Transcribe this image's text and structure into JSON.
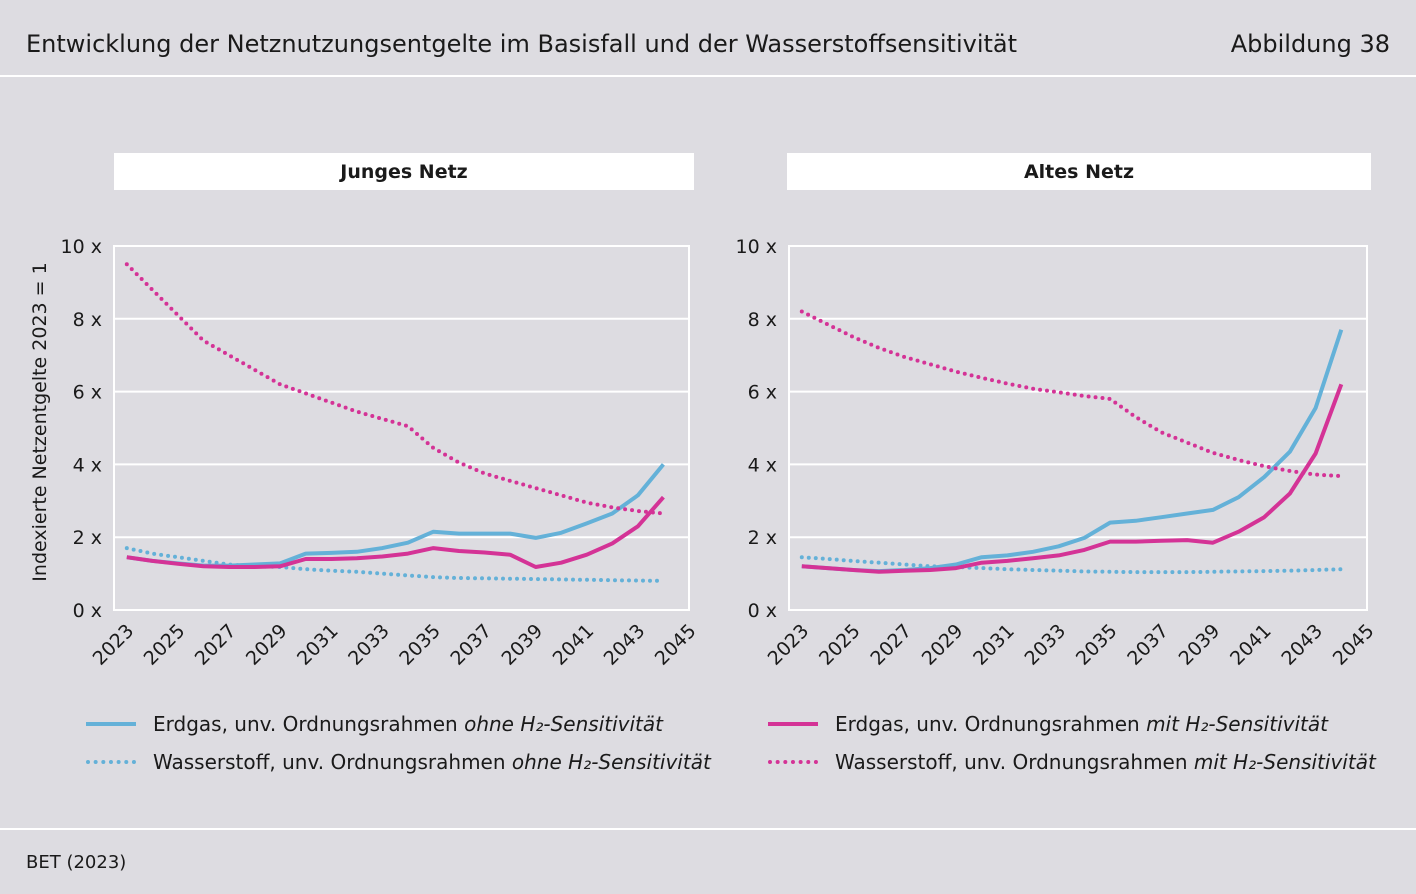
{
  "header": {
    "title": "Entwicklung der Netznutzungsentgelte im Basisfall und der Wasserstoffsensitivität",
    "figure_label": "Abbildung 38"
  },
  "footer": {
    "source": "BET (2023)"
  },
  "legend": [
    {
      "text": "Erdgas, unv. Ordnungsrahmen ",
      "em": "ohne H₂-Sensitivität"
    },
    {
      "text": "Wasserstoff, unv. Ordnungsrahmen ",
      "em": "ohne H₂-Sensitivität"
    },
    {
      "text": "Erdgas, unv. Ordnungsrahmen ",
      "em": "mit H₂-Sensitivität"
    },
    {
      "text": "Wasserstoff, unv. Ordnungsrahmen ",
      "em": "mit H₂-Sensitivität"
    }
  ],
  "colors": {
    "blue": "#64b1d8",
    "pink": "#d43396",
    "grid": "#ffffff",
    "background": "#dddce1"
  },
  "chart_data": [
    {
      "type": "line",
      "title": "Junges Netz",
      "ylabel": "Indexierte Netzentgelte 2023 = 1",
      "ylim": [
        0,
        10
      ],
      "yticks": [
        0,
        2,
        4,
        6,
        8,
        10
      ],
      "ytick_labels": [
        "0 x",
        "2 x",
        "4 x",
        "6 x",
        "8 x",
        "10 x"
      ],
      "xlim": [
        2022.5,
        2045
      ],
      "xtick_labels": [
        "2023",
        "2025",
        "2027",
        "2029",
        "2031",
        "2033",
        "2035",
        "2037",
        "2039",
        "2041",
        "2043",
        "2045"
      ],
      "x": [
        2023,
        2024,
        2025,
        2026,
        2027,
        2028,
        2029,
        2030,
        2031,
        2032,
        2033,
        2034,
        2035,
        2036,
        2037,
        2038,
        2039,
        2040,
        2041,
        2042,
        2043,
        2044
      ],
      "series": [
        {
          "name": "Erdgas ohne H₂",
          "style": "solid",
          "color": "#64b1d8",
          "values": [
            1.45,
            1.35,
            1.28,
            1.22,
            1.22,
            1.25,
            1.28,
            1.55,
            1.57,
            1.6,
            1.7,
            1.85,
            2.15,
            2.1,
            2.1,
            2.1,
            1.98,
            2.12,
            2.38,
            2.65,
            3.15,
            4.0
          ]
        },
        {
          "name": "Wasserstoff ohne H₂",
          "style": "dotted",
          "color": "#64b1d8",
          "values": [
            1.7,
            1.55,
            1.45,
            1.35,
            1.25,
            1.2,
            1.18,
            1.12,
            1.08,
            1.05,
            1.0,
            0.95,
            0.9,
            0.88,
            0.87,
            0.86,
            0.85,
            0.84,
            0.83,
            0.82,
            0.81,
            0.8
          ]
        },
        {
          "name": "Erdgas mit H₂",
          "style": "solid",
          "color": "#d43396",
          "values": [
            1.45,
            1.35,
            1.27,
            1.2,
            1.18,
            1.18,
            1.2,
            1.4,
            1.4,
            1.42,
            1.47,
            1.55,
            1.7,
            1.62,
            1.58,
            1.52,
            1.18,
            1.3,
            1.52,
            1.83,
            2.3,
            3.1
          ]
        },
        {
          "name": "Wasserstoff mit H₂",
          "style": "dotted",
          "color": "#d43396",
          "values": [
            9.5,
            8.8,
            8.1,
            7.4,
            7.0,
            6.6,
            6.2,
            5.95,
            5.7,
            5.45,
            5.25,
            5.05,
            4.45,
            4.05,
            3.75,
            3.55,
            3.35,
            3.15,
            2.95,
            2.82,
            2.72,
            2.65
          ]
        }
      ]
    },
    {
      "type": "line",
      "title": "Altes Netz",
      "ylim": [
        0,
        10
      ],
      "yticks": [
        0,
        2,
        4,
        6,
        8,
        10
      ],
      "ytick_labels": [
        "0 x",
        "2 x",
        "4 x",
        "6 x",
        "8 x",
        "10 x"
      ],
      "xlim": [
        2022.5,
        2045
      ],
      "xtick_labels": [
        "2023",
        "2025",
        "2027",
        "2029",
        "2031",
        "2033",
        "2035",
        "2037",
        "2039",
        "2041",
        "2043",
        "2045"
      ],
      "x": [
        2023,
        2024,
        2025,
        2026,
        2027,
        2028,
        2029,
        2030,
        2031,
        2032,
        2033,
        2034,
        2035,
        2036,
        2037,
        2038,
        2039,
        2040,
        2041,
        2042,
        2043,
        2044
      ],
      "series": [
        {
          "name": "Erdgas ohne H₂",
          "style": "solid",
          "color": "#64b1d8",
          "values": [
            1.2,
            1.15,
            1.1,
            1.07,
            1.1,
            1.15,
            1.25,
            1.45,
            1.5,
            1.6,
            1.75,
            1.98,
            2.4,
            2.45,
            2.55,
            2.65,
            2.75,
            3.1,
            3.65,
            4.35,
            5.55,
            7.7
          ]
        },
        {
          "name": "Wasserstoff ohne H₂",
          "style": "dotted",
          "color": "#64b1d8",
          "values": [
            1.45,
            1.4,
            1.35,
            1.3,
            1.25,
            1.2,
            1.18,
            1.15,
            1.12,
            1.1,
            1.08,
            1.06,
            1.05,
            1.04,
            1.04,
            1.04,
            1.05,
            1.06,
            1.07,
            1.08,
            1.1,
            1.12
          ]
        },
        {
          "name": "Erdgas mit H₂",
          "style": "solid",
          "color": "#d43396",
          "values": [
            1.2,
            1.15,
            1.1,
            1.05,
            1.08,
            1.1,
            1.15,
            1.3,
            1.35,
            1.42,
            1.5,
            1.65,
            1.88,
            1.88,
            1.9,
            1.92,
            1.85,
            2.15,
            2.55,
            3.2,
            4.3,
            6.2
          ]
        },
        {
          "name": "Wasserstoff mit H₂",
          "style": "dotted",
          "color": "#d43396",
          "values": [
            8.2,
            7.85,
            7.5,
            7.2,
            6.95,
            6.75,
            6.55,
            6.38,
            6.22,
            6.08,
            5.98,
            5.88,
            5.8,
            5.3,
            4.88,
            4.6,
            4.32,
            4.12,
            3.95,
            3.82,
            3.72,
            3.68
          ]
        }
      ]
    }
  ]
}
